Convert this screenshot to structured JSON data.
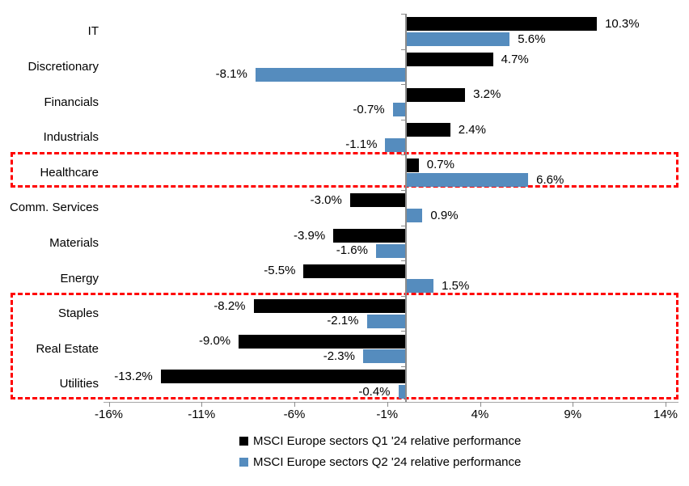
{
  "chart_data": {
    "type": "bar",
    "orientation": "horizontal",
    "title": "",
    "categories": [
      "IT",
      "Discretionary",
      "Financials",
      "Industrials",
      "Healthcare",
      "Comm. Services",
      "Materials",
      "Energy",
      "Staples",
      "Real Estate",
      "Utilities"
    ],
    "series": [
      {
        "name": "MSCI Europe sectors Q1 '24 relative performance",
        "color": "#000000",
        "values": [
          10.3,
          4.7,
          3.2,
          2.4,
          0.7,
          -3.0,
          -3.9,
          -5.5,
          -8.2,
          -9.0,
          -13.2
        ],
        "labels": [
          "10.3%",
          "4.7%",
          "3.2%",
          "2.4%",
          "0.7%",
          "-3.0%",
          "-3.9%",
          "-5.5%",
          "-8.2%",
          "-9.0%",
          "-13.2%"
        ]
      },
      {
        "name": "MSCI Europe sectors Q2 '24 relative performance",
        "color": "#558CBE",
        "values": [
          5.6,
          -8.1,
          -0.7,
          -1.1,
          6.6,
          0.9,
          -1.6,
          1.5,
          -2.1,
          -2.3,
          -0.4
        ],
        "labels": [
          "5.6%",
          "-8.1%",
          "-0.7%",
          "-1.1%",
          "6.6%",
          "0.9%",
          "-1.6%",
          "1.5%",
          "-2.1%",
          "-2.3%",
          "-0.4%"
        ]
      }
    ],
    "x_axis": {
      "tick_labels": [
        "-16%",
        "-11%",
        "-6%",
        "-1%",
        "4%",
        "9%",
        "14%"
      ],
      "tick_values": [
        -16,
        -11,
        -6,
        -1,
        4,
        9,
        14
      ],
      "min": -16,
      "max": 14,
      "zero_line": true
    },
    "grid": false,
    "legend_position": "bottom",
    "data_labels": true,
    "highlights": [
      {
        "name": "healthcare-highlight",
        "rows": [
          "Healthcare"
        ],
        "color": "#ff0000"
      },
      {
        "name": "defensive-sectors-highlight",
        "rows": [
          "Staples",
          "Real Estate",
          "Utilities"
        ],
        "color": "#ff0000"
      }
    ],
    "colors": {
      "q1_series": "#000000",
      "q2_series": "#558CBE",
      "highlight": "#ff0000",
      "axis": "#a6a6a6"
    }
  }
}
